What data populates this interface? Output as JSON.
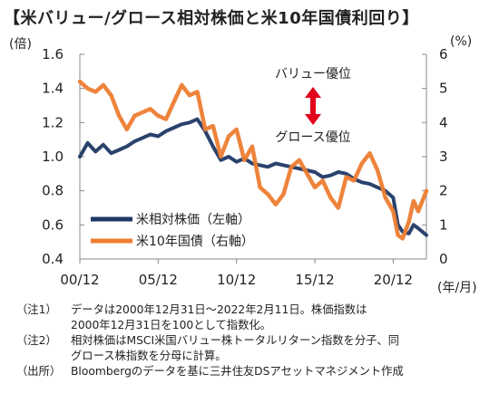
{
  "title": "【米バリュー/グロース相対株価と米10年国債利回り】",
  "chart_data": {
    "type": "line",
    "left_unit": "(倍)",
    "right_unit": "(%)",
    "x_unit": "(年/月)",
    "x_ticks": [
      "00/12",
      "05/12",
      "10/12",
      "15/12",
      "20/12"
    ],
    "y_left_ticks": [
      "0.4",
      "0.6",
      "0.8",
      "1.0",
      "1.2",
      "1.4",
      "1.6"
    ],
    "y_right_ticks": [
      "0",
      "1",
      "2",
      "3",
      "4",
      "5",
      "6"
    ],
    "ylim_left": [
      0.4,
      1.6
    ],
    "ylim_right": [
      0,
      6
    ],
    "xlim": [
      2000.0,
      2022.12
    ],
    "annotations": {
      "value_label": "バリュー優位",
      "growth_label": "グロース優位"
    },
    "series": [
      {
        "name": "米相対株価（左軸）",
        "axis": "left",
        "color": "#1f3864",
        "x": [
          2000.0,
          2000.5,
          2001.0,
          2001.5,
          2002.0,
          2002.5,
          2003.0,
          2003.5,
          2004.0,
          2004.5,
          2005.0,
          2005.5,
          2006.0,
          2006.5,
          2007.0,
          2007.5,
          2008.0,
          2008.5,
          2009.0,
          2009.5,
          2010.0,
          2010.5,
          2011.0,
          2011.5,
          2012.0,
          2012.5,
          2013.0,
          2013.5,
          2014.0,
          2014.5,
          2015.0,
          2015.5,
          2016.0,
          2016.5,
          2017.0,
          2017.5,
          2018.0,
          2018.5,
          2019.0,
          2019.5,
          2020.0,
          2020.3,
          2020.6,
          2021.0,
          2021.3,
          2021.6,
          2022.12
        ],
        "values": [
          1.0,
          1.08,
          1.03,
          1.07,
          1.02,
          1.04,
          1.06,
          1.09,
          1.11,
          1.13,
          1.12,
          1.15,
          1.17,
          1.19,
          1.2,
          1.22,
          1.15,
          1.06,
          0.98,
          1.0,
          0.97,
          0.99,
          0.96,
          0.95,
          0.94,
          0.96,
          0.95,
          0.94,
          0.93,
          0.92,
          0.91,
          0.88,
          0.89,
          0.91,
          0.9,
          0.87,
          0.85,
          0.84,
          0.82,
          0.8,
          0.76,
          0.6,
          0.56,
          0.55,
          0.6,
          0.58,
          0.54
        ]
      },
      {
        "name": "米10年国債（右軸）",
        "axis": "right",
        "color": "#ed7d31",
        "x": [
          2000.0,
          2000.5,
          2001.0,
          2001.5,
          2002.0,
          2002.5,
          2003.0,
          2003.5,
          2004.0,
          2004.5,
          2005.0,
          2005.5,
          2006.0,
          2006.5,
          2007.0,
          2007.5,
          2008.0,
          2008.5,
          2009.0,
          2009.5,
          2010.0,
          2010.5,
          2011.0,
          2011.5,
          2012.0,
          2012.5,
          2013.0,
          2013.5,
          2014.0,
          2014.5,
          2015.0,
          2015.5,
          2016.0,
          2016.5,
          2017.0,
          2017.5,
          2018.0,
          2018.5,
          2019.0,
          2019.5,
          2020.0,
          2020.3,
          2020.6,
          2021.0,
          2021.3,
          2021.6,
          2022.12
        ],
        "values": [
          5.2,
          5.0,
          4.9,
          5.1,
          4.8,
          4.2,
          3.8,
          4.2,
          4.3,
          4.4,
          4.2,
          4.1,
          4.6,
          5.1,
          4.8,
          4.9,
          3.8,
          3.9,
          3.0,
          3.6,
          3.8,
          2.9,
          3.3,
          2.1,
          1.9,
          1.6,
          1.9,
          2.7,
          2.9,
          2.5,
          2.1,
          2.3,
          1.8,
          1.5,
          2.4,
          2.3,
          2.8,
          3.1,
          2.6,
          1.8,
          1.4,
          0.7,
          0.6,
          1.1,
          1.7,
          1.4,
          2.0
        ]
      }
    ]
  },
  "notes": [
    {
      "label": "（注1）",
      "text": "データは2000年12月31日～2022年2月11日。株価指数は\n2000年12月31日を100として指数化。"
    },
    {
      "label": "（注2）",
      "text": "相対株価はMSCI米国バリュー株トータルリターン指数を分子、同\nグロース株指数を分母に計算。"
    },
    {
      "label": "（出所）",
      "text": "Bloombergのデータを基に三井住友DSアセットマネジメント作成"
    }
  ]
}
